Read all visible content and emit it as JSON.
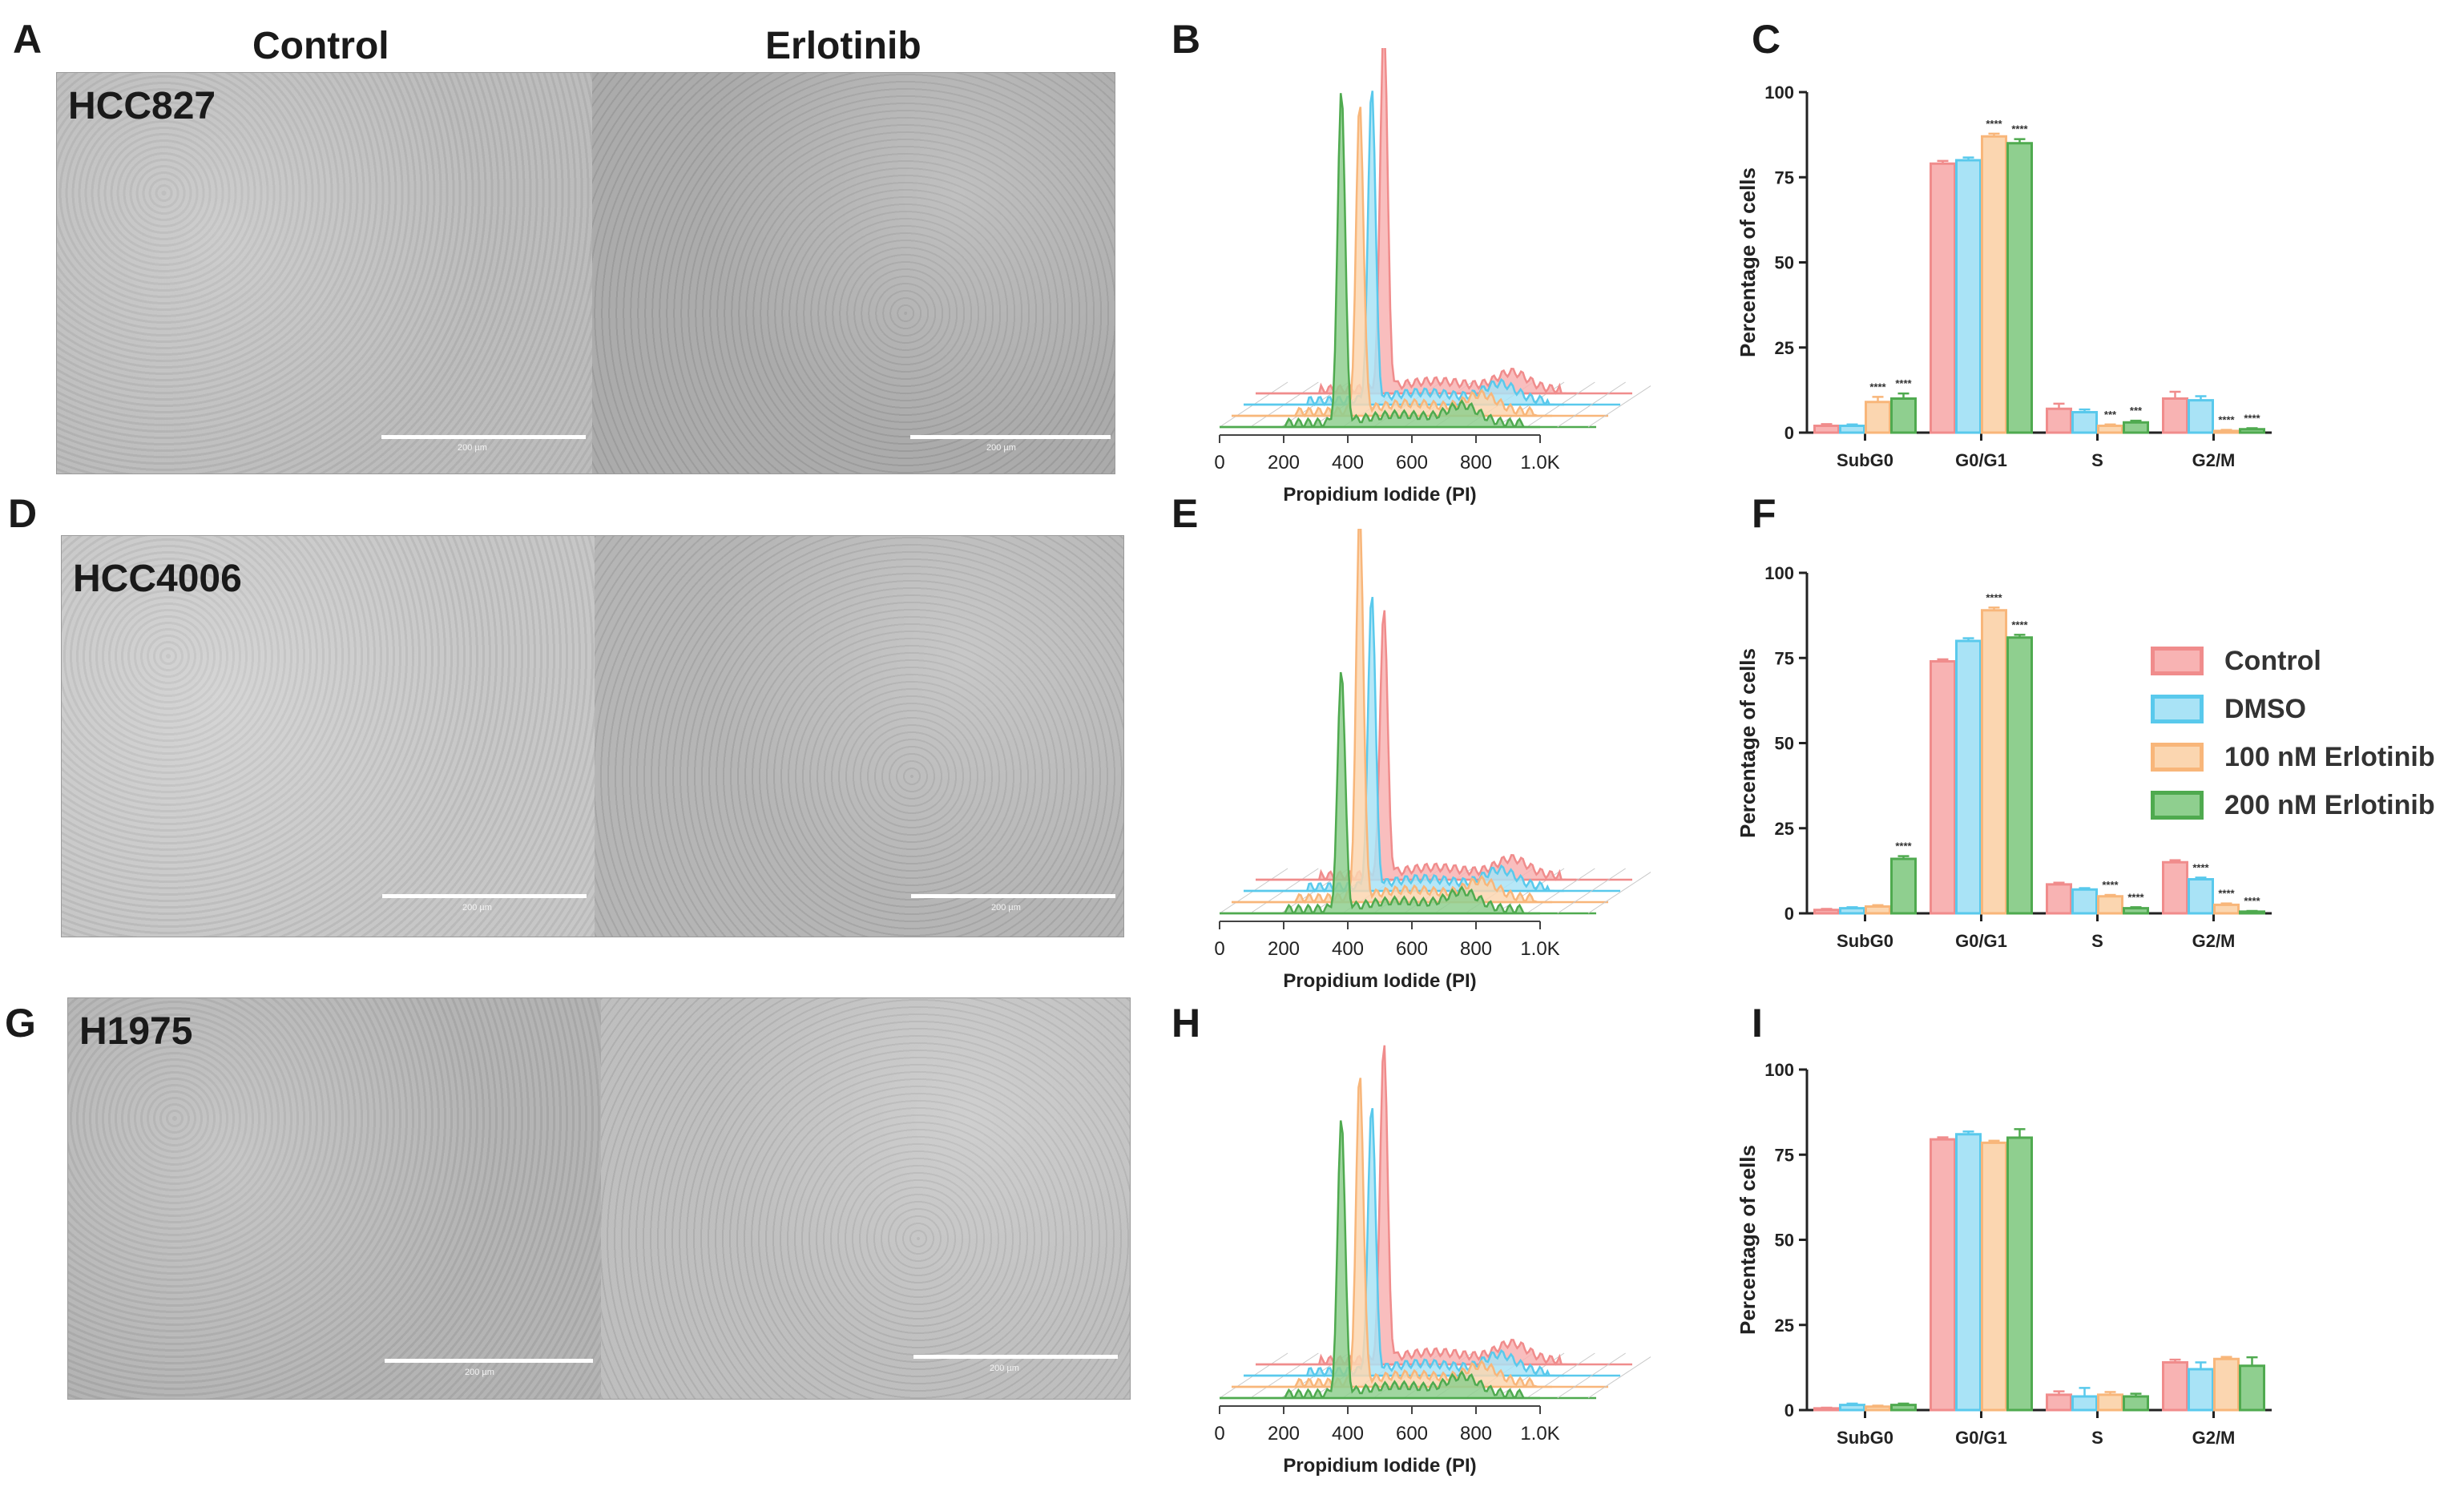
{
  "panel_letters": [
    "A",
    "B",
    "C",
    "D",
    "E",
    "F",
    "G",
    "H",
    "I"
  ],
  "column_headers": {
    "left": "Control",
    "right": "Erlotinib"
  },
  "micrographs": [
    {
      "cell_line": "HCC827",
      "scale_left": "200 µm",
      "scale_right": "200 µm",
      "left_tone": "#b9b9b9",
      "right_tone": "#a8a8a8"
    },
    {
      "cell_line": "HCC4006",
      "scale_left": "200 µm",
      "scale_right": "200 µm",
      "left_tone": "#c4c4c4",
      "right_tone": "#b2b2b2"
    },
    {
      "cell_line": "H1975",
      "scale_left": "200 µm",
      "scale_right": "200 µm",
      "left_tone": "#b0b0b0",
      "right_tone": "#bcbcbc"
    }
  ],
  "series_colors": {
    "Control": "#f08c8c",
    "DMSO": "#59c9ec",
    "100 nM Erlotinib": "#f8b67a",
    "200 nM Erlotinib": "#4faa4f"
  },
  "series_fill": {
    "Control": "#f8b3b3",
    "DMSO": "#a9e3f6",
    "100 nM Erlotinib": "#fbd6b0",
    "200 nM Erlotinib": "#8fcf8f"
  },
  "legend": [
    "Control",
    "DMSO",
    "100 nM Erlotinib",
    "200 nM Erlotinib"
  ],
  "chart_data": [
    {
      "id": "B",
      "type": "area",
      "xlabel": "Propidium Iodide (PI)",
      "xticks": [
        "0",
        "200",
        "400",
        "600",
        "800",
        "1.0K"
      ],
      "xlim": [
        0,
        1000
      ],
      "series": [
        {
          "name": "200 nM Erlotinib",
          "g1_peak": 380,
          "g1_height": 1.0,
          "g2_bump": 760
        },
        {
          "name": "100 nM Erlotinib",
          "g1_peak": 400,
          "g1_height": 0.92,
          "g2_bump": 780
        },
        {
          "name": "DMSO",
          "g1_peak": 400,
          "g1_height": 0.94,
          "g2_bump": 800
        },
        {
          "name": "Control",
          "g1_peak": 400,
          "g1_height": 1.1,
          "g2_bump": 800
        }
      ]
    },
    {
      "id": "C",
      "type": "bar",
      "ylabel": "Percentage of cells",
      "ylim": [
        0,
        100
      ],
      "yticks": [
        0,
        25,
        50,
        75,
        100
      ],
      "categories": [
        "SubG0",
        "G0/G1",
        "S",
        "G2/M"
      ],
      "series": [
        {
          "name": "Control",
          "values": [
            2,
            79,
            7,
            10
          ],
          "errors": [
            0.5,
            0.8,
            1.5,
            2.0
          ]
        },
        {
          "name": "DMSO",
          "values": [
            2,
            80,
            6,
            9.5
          ],
          "errors": [
            0.4,
            0.8,
            0.8,
            1.2
          ]
        },
        {
          "name": "100 nM Erlotinib",
          "values": [
            9,
            87,
            2,
            0.5
          ],
          "errors": [
            1.5,
            0.8,
            0.4,
            0.3
          ]
        },
        {
          "name": "200 nM Erlotinib",
          "values": [
            10,
            85,
            3,
            1
          ],
          "errors": [
            1.5,
            1.2,
            0.5,
            0.3
          ]
        }
      ],
      "annotations": [
        {
          "category": "SubG0",
          "series": "100 nM Erlotinib",
          "text": "****"
        },
        {
          "category": "SubG0",
          "series": "200 nM Erlotinib",
          "text": "****"
        },
        {
          "category": "G0/G1",
          "series": "100 nM Erlotinib",
          "text": "****"
        },
        {
          "category": "G0/G1",
          "series": "200 nM Erlotinib",
          "text": "****"
        },
        {
          "category": "S",
          "series": "100 nM Erlotinib",
          "text": "***"
        },
        {
          "category": "S",
          "series": "200 nM Erlotinib",
          "text": "***"
        },
        {
          "category": "G2/M",
          "series": "100 nM Erlotinib",
          "text": "****"
        },
        {
          "category": "G2/M",
          "series": "200 nM Erlotinib",
          "text": "****"
        }
      ]
    },
    {
      "id": "E",
      "type": "area",
      "xlabel": "Propidium Iodide (PI)",
      "xticks": [
        "0",
        "200",
        "400",
        "600",
        "800",
        "1.0K"
      ],
      "xlim": [
        0,
        1000
      ],
      "series": [
        {
          "name": "200 nM Erlotinib",
          "g1_peak": 380,
          "g1_height": 0.72,
          "g2_bump": 760
        },
        {
          "name": "100 nM Erlotinib",
          "g1_peak": 400,
          "g1_height": 1.15,
          "g2_bump": 780
        },
        {
          "name": "DMSO",
          "g1_peak": 400,
          "g1_height": 0.88,
          "g2_bump": 800
        },
        {
          "name": "Control",
          "g1_peak": 400,
          "g1_height": 0.8,
          "g2_bump": 800
        }
      ]
    },
    {
      "id": "F",
      "type": "bar",
      "ylabel": "Percentage of cells",
      "ylim": [
        0,
        100
      ],
      "yticks": [
        0,
        25,
        50,
        75,
        100
      ],
      "categories": [
        "SubG0",
        "G0/G1",
        "S",
        "G2/M"
      ],
      "series": [
        {
          "name": "Control",
          "values": [
            1,
            74,
            8.5,
            15
          ],
          "errors": [
            0.3,
            0.6,
            0.5,
            0.6
          ]
        },
        {
          "name": "DMSO",
          "values": [
            1.5,
            80,
            7,
            10
          ],
          "errors": [
            0.3,
            0.8,
            0.4,
            0.5
          ]
        },
        {
          "name": "100 nM Erlotinib",
          "values": [
            2,
            89,
            5,
            2.5
          ],
          "errors": [
            0.4,
            0.8,
            0.4,
            0.4
          ]
        },
        {
          "name": "200 nM Erlotinib",
          "values": [
            16,
            81,
            1.5,
            0.5
          ],
          "errors": [
            0.8,
            0.8,
            0.3,
            0.2
          ]
        }
      ],
      "annotations": [
        {
          "category": "SubG0",
          "series": "200 nM Erlotinib",
          "text": "****"
        },
        {
          "category": "G0/G1",
          "series": "100 nM Erlotinib",
          "text": "****"
        },
        {
          "category": "G0/G1",
          "series": "200 nM Erlotinib",
          "text": "****"
        },
        {
          "category": "S",
          "series": "100 nM Erlotinib",
          "text": "****"
        },
        {
          "category": "S",
          "series": "200 nM Erlotinib",
          "text": "****"
        },
        {
          "category": "G2/M",
          "series": "DMSO",
          "text": "****"
        },
        {
          "category": "G2/M",
          "series": "100 nM Erlotinib",
          "text": "****"
        },
        {
          "category": "G2/M",
          "series": "200 nM Erlotinib",
          "text": "****"
        }
      ]
    },
    {
      "id": "H",
      "type": "area",
      "xlabel": "Propidium Iodide (PI)",
      "xticks": [
        "0",
        "200",
        "400",
        "600",
        "800",
        "1.0K"
      ],
      "xlim": [
        0,
        1000
      ],
      "series": [
        {
          "name": "200 nM Erlotinib",
          "g1_peak": 380,
          "g1_height": 0.83,
          "g2_bump": 760
        },
        {
          "name": "100 nM Erlotinib",
          "g1_peak": 400,
          "g1_height": 0.92,
          "g2_bump": 780
        },
        {
          "name": "DMSO",
          "g1_peak": 400,
          "g1_height": 0.8,
          "g2_bump": 800
        },
        {
          "name": "Control",
          "g1_peak": 400,
          "g1_height": 0.95,
          "g2_bump": 800
        }
      ]
    },
    {
      "id": "I",
      "type": "bar",
      "ylabel": "Percentage of cells",
      "ylim": [
        0,
        100
      ],
      "yticks": [
        0,
        25,
        50,
        75,
        100
      ],
      "categories": [
        "SubG0",
        "G0/G1",
        "S",
        "G2/M"
      ],
      "series": [
        {
          "name": "Control",
          "values": [
            0.5,
            79.5,
            4.5,
            14
          ],
          "errors": [
            0.2,
            0.6,
            1.0,
            0.8
          ]
        },
        {
          "name": "DMSO",
          "values": [
            1.5,
            81,
            4,
            12
          ],
          "errors": [
            0.4,
            0.8,
            2.5,
            2.0
          ]
        },
        {
          "name": "100 nM Erlotinib",
          "values": [
            1,
            78.5,
            4.5,
            15
          ],
          "errors": [
            0.3,
            0.6,
            0.8,
            0.6
          ]
        },
        {
          "name": "200 nM Erlotinib",
          "values": [
            1.5,
            80,
            4,
            13
          ],
          "errors": [
            0.4,
            2.5,
            0.8,
            2.5
          ]
        }
      ],
      "annotations": []
    }
  ]
}
